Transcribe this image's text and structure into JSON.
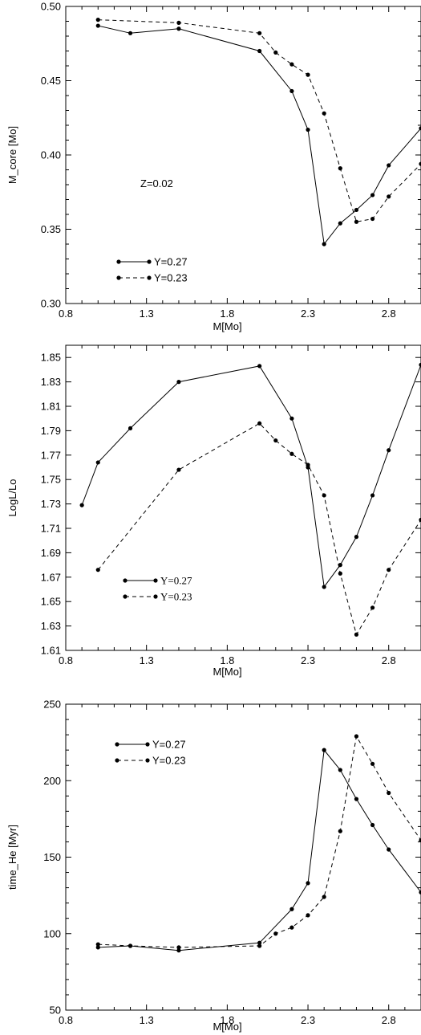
{
  "chart_data": [
    {
      "type": "line",
      "xlabel": "M[Mo]",
      "ylabel": "M_core [Mo]",
      "xlim": [
        0.8,
        3.0
      ],
      "ylim": [
        0.3,
        0.5
      ],
      "xticks": [
        0.8,
        1.3,
        1.8,
        2.3,
        2.8
      ],
      "xtick_labels": [
        "0.8",
        "1.3",
        "1.8",
        "2.3",
        "2.8"
      ],
      "yticks": [
        0.3,
        0.35,
        0.4,
        0.45,
        0.5
      ],
      "ytick_labels": [
        "0.30",
        "0.35",
        "0.40",
        "0.45",
        "0.50"
      ],
      "annotation": "Z=0.02",
      "legend_placement": "bottom-left",
      "series": [
        {
          "name": "Y=0.27",
          "style": "solid",
          "x": [
            1.0,
            1.2,
            1.5,
            2.0,
            2.2,
            2.3,
            2.4,
            2.5,
            2.6,
            2.7,
            2.8,
            3.0
          ],
          "y": [
            0.487,
            0.482,
            0.485,
            0.47,
            0.443,
            0.417,
            0.34,
            0.354,
            0.363,
            0.373,
            0.393,
            0.418
          ]
        },
        {
          "name": "Y=0.23",
          "style": "dashed",
          "x": [
            1.0,
            1.5,
            2.0,
            2.1,
            2.2,
            2.3,
            2.4,
            2.5,
            2.6,
            2.7,
            2.8,
            3.0
          ],
          "y": [
            0.491,
            0.489,
            0.482,
            0.469,
            0.461,
            0.454,
            0.428,
            0.391,
            0.355,
            0.357,
            0.372,
            0.394
          ]
        }
      ]
    },
    {
      "type": "line",
      "xlabel": "M[Mo]",
      "ylabel": "LogL/Lo",
      "xlim": [
        0.8,
        3.0
      ],
      "ylim": [
        1.61,
        1.86
      ],
      "xticks": [
        0.8,
        1.3,
        1.8,
        2.3,
        2.8
      ],
      "xtick_labels": [
        "0.8",
        "1.3",
        "1.8",
        "2.3",
        "2.8"
      ],
      "yticks": [
        1.61,
        1.63,
        1.65,
        1.67,
        1.69,
        1.71,
        1.73,
        1.75,
        1.77,
        1.79,
        1.81,
        1.83,
        1.85
      ],
      "ytick_labels": [
        "1.61",
        "1.63",
        "1.65",
        "1.67",
        "1.69",
        "1.71",
        "1.73",
        "1.75",
        "1.77",
        "1.79",
        "1.81",
        "1.83",
        "1.85"
      ],
      "legend_placement": "bottom-left",
      "series": [
        {
          "name": "Y=0.27",
          "style": "solid",
          "x": [
            0.9,
            1.0,
            1.2,
            1.5,
            2.0,
            2.2,
            2.3,
            2.4,
            2.5,
            2.6,
            2.7,
            2.8,
            3.0
          ],
          "y": [
            1.729,
            1.764,
            1.792,
            1.83,
            1.843,
            1.8,
            1.76,
            1.662,
            1.68,
            1.703,
            1.737,
            1.774,
            1.844
          ]
        },
        {
          "name": "Y=0.23",
          "style": "dashed",
          "x": [
            1.0,
            1.5,
            2.0,
            2.1,
            2.2,
            2.3,
            2.4,
            2.5,
            2.6,
            2.7,
            2.8,
            3.0
          ],
          "y": [
            1.676,
            1.758,
            1.796,
            1.782,
            1.771,
            1.762,
            1.737,
            1.673,
            1.623,
            1.645,
            1.676,
            1.717
          ]
        }
      ]
    },
    {
      "type": "line",
      "xlabel": "M[Mo]",
      "ylabel": "time_He [Myr]",
      "xlim": [
        0.8,
        3.0
      ],
      "ylim": [
        50,
        250
      ],
      "xticks": [
        0.8,
        1.3,
        1.8,
        2.3,
        2.8
      ],
      "xtick_labels": [
        "0.8",
        "1.3",
        "1.8",
        "2.3",
        "2.8"
      ],
      "yticks": [
        50,
        100,
        150,
        200,
        250
      ],
      "ytick_labels": [
        "50",
        "100",
        "150",
        "200",
        "250"
      ],
      "legend_placement": "top-left",
      "series": [
        {
          "name": "Y=0.27",
          "style": "solid",
          "x": [
            1.0,
            1.2,
            1.5,
            2.0,
            2.2,
            2.3,
            2.4,
            2.5,
            2.6,
            2.7,
            2.8,
            3.0
          ],
          "y": [
            91,
            92,
            89,
            94,
            116,
            133,
            220,
            207,
            188,
            171,
            155,
            127
          ]
        },
        {
          "name": "Y=0.23",
          "style": "dashed",
          "x": [
            1.0,
            1.2,
            1.5,
            2.0,
            2.1,
            2.2,
            2.3,
            2.4,
            2.5,
            2.6,
            2.7,
            2.8,
            3.0
          ],
          "y": [
            93,
            92,
            91,
            92,
            100,
            104,
            112,
            124,
            167,
            229,
            211,
            192,
            161
          ]
        }
      ]
    }
  ]
}
